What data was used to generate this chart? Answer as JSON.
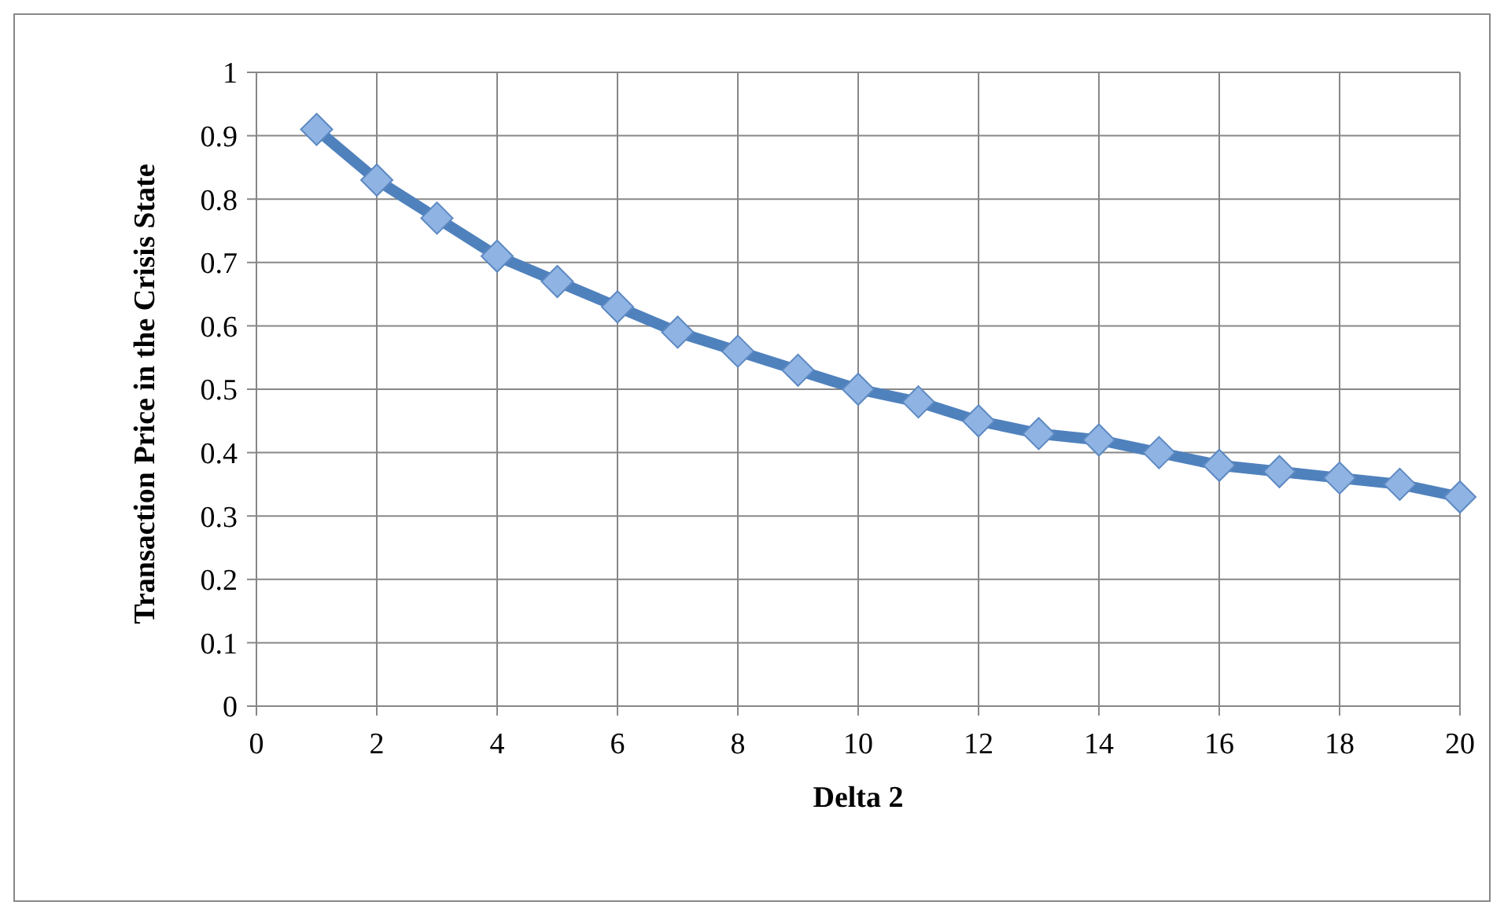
{
  "chart_data": {
    "type": "line",
    "xlabel": "Delta 2",
    "ylabel": "Transaction Price in the Crisis State",
    "x": [
      1,
      2,
      3,
      4,
      5,
      6,
      7,
      8,
      9,
      10,
      11,
      12,
      13,
      14,
      15,
      16,
      17,
      18,
      19,
      20
    ],
    "series": [
      {
        "color": "#4f81bd",
        "values": [
          0.91,
          0.83,
          0.77,
          0.71,
          0.67,
          0.63,
          0.59,
          0.56,
          0.53,
          0.5,
          0.48,
          0.45,
          0.43,
          0.42,
          0.4,
          0.38,
          0.37,
          0.36,
          0.35,
          0.33
        ]
      }
    ],
    "xlim": [
      0,
      20
    ],
    "xticks": [
      0,
      2,
      4,
      6,
      8,
      10,
      12,
      14,
      16,
      18,
      20
    ],
    "ylim": [
      0,
      1
    ],
    "yticks": [
      0,
      0.1,
      0.2,
      0.3,
      0.4,
      0.5,
      0.6,
      0.7,
      0.8,
      0.9,
      1
    ],
    "grid": true,
    "marker": "diamond",
    "line_style": "solid"
  }
}
